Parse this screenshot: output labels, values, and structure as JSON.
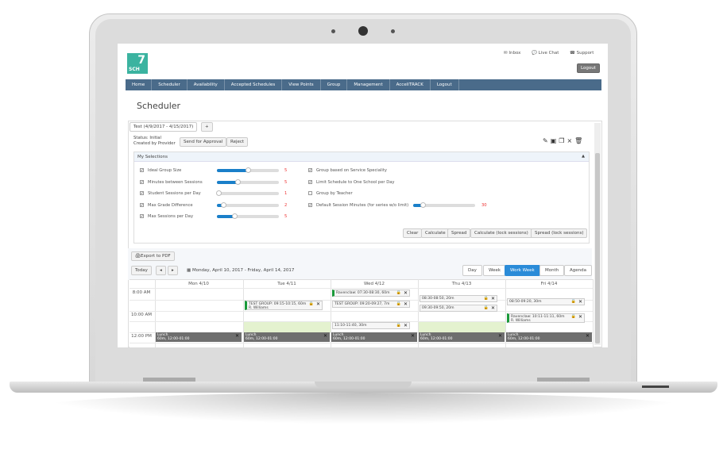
{
  "header": {
    "logo_text": "SCH",
    "inbox": "Inbox",
    "live_chat": "Live Chat",
    "support": "Support",
    "logout": "Logout"
  },
  "nav": [
    "Home",
    "Scheduler",
    "Availability",
    "Accepted Schedules",
    "View Points",
    "Group",
    "Management",
    "AcceliTRACK",
    "Logout"
  ],
  "page_title": "Scheduler",
  "tabs": {
    "active": "Test (4/9/2017 - 4/15/2017)",
    "add": "+"
  },
  "status": {
    "line1": "Status: Initial",
    "line2": "Created by Provider",
    "send": "Send for Approval",
    "reject": "Reject"
  },
  "selections": {
    "title": "My Selections",
    "sliders": [
      {
        "label": "Ideal Group Size",
        "checked": true,
        "value": "5",
        "fill": 0.5
      },
      {
        "label": "Minutes between Sessions",
        "checked": true,
        "value": "5",
        "fill": 0.33
      },
      {
        "label": "Student Sessions per Day",
        "checked": true,
        "value": "1",
        "fill": 0.02
      },
      {
        "label": "Max Grade Difference",
        "checked": true,
        "value": "2",
        "fill": 0.1
      },
      {
        "label": "Max Sessions per Day",
        "checked": true,
        "value": "5",
        "fill": 0.28
      }
    ],
    "options": [
      {
        "label": "Group based on Service Speciality",
        "checked": true
      },
      {
        "label": "Limit Schedule to One School per Day",
        "checked": true
      },
      {
        "label": "Group by Teacher",
        "checked": false
      },
      {
        "label": "Default Session Minutes (for series w/o limit)",
        "checked": true,
        "value": "30",
        "fill": 0.15
      }
    ],
    "buttons": [
      "Clear",
      "Calculate",
      "Spread",
      "Calculate (lock sessions)",
      "Spread (lock sessions)"
    ]
  },
  "calendar": {
    "export": "Export to PDF",
    "today": "Today",
    "prev": "◂",
    "next": "▸",
    "range": "Monday, April 10, 2017 - Friday, April 14, 2017",
    "views": [
      "Day",
      "Week",
      "Work Week",
      "Month",
      "Agenda"
    ],
    "active_view": "Work Week",
    "days": [
      "Mon 4/10",
      "Tue 4/11",
      "Wed 4/12",
      "Thu 4/13",
      "Fri 4/14"
    ],
    "times": [
      "8:00 AM",
      "10:00 AM",
      "12:00 PM"
    ],
    "events": [
      {
        "day": 1,
        "row": 1,
        "text": "TEST GROUP: 09:15-10:15, 60m",
        "sub": "R. Williams",
        "green": true
      },
      {
        "day": 2,
        "row": 0,
        "text": "Ravenclaw: 07:30-08:30, 60m",
        "sub": "",
        "green": true
      },
      {
        "day": 2,
        "row": 1,
        "text": "TEST GROUP: 09:20-09:27, 7m",
        "sub": "",
        "green": false
      },
      {
        "day": 2,
        "row": 3,
        "text": "11:10-11:40, 30m",
        "sub": "",
        "green": false
      },
      {
        "day": 3,
        "row": 0.5,
        "text": "08:30-08:50, 20m",
        "sub": "",
        "green": false
      },
      {
        "day": 3,
        "row": 1.4,
        "text": "09:30-09:50, 20m",
        "sub": "",
        "green": false
      },
      {
        "day": 4,
        "row": 0.8,
        "text": "08:50-09:20, 30m",
        "sub": "",
        "green": false
      },
      {
        "day": 4,
        "row": 2.2,
        "text": "Ravenclaw: 10:11-11:11, 60m",
        "sub": "R. Williams",
        "green": true
      }
    ],
    "lunch": {
      "title": "Lunch",
      "sub": "60m, 12:00-01:00"
    }
  },
  "colors": {
    "nav": "#4a6b8a",
    "accent": "#1a7fc9",
    "logo": "#3bb3a0",
    "value": "#e33333"
  }
}
